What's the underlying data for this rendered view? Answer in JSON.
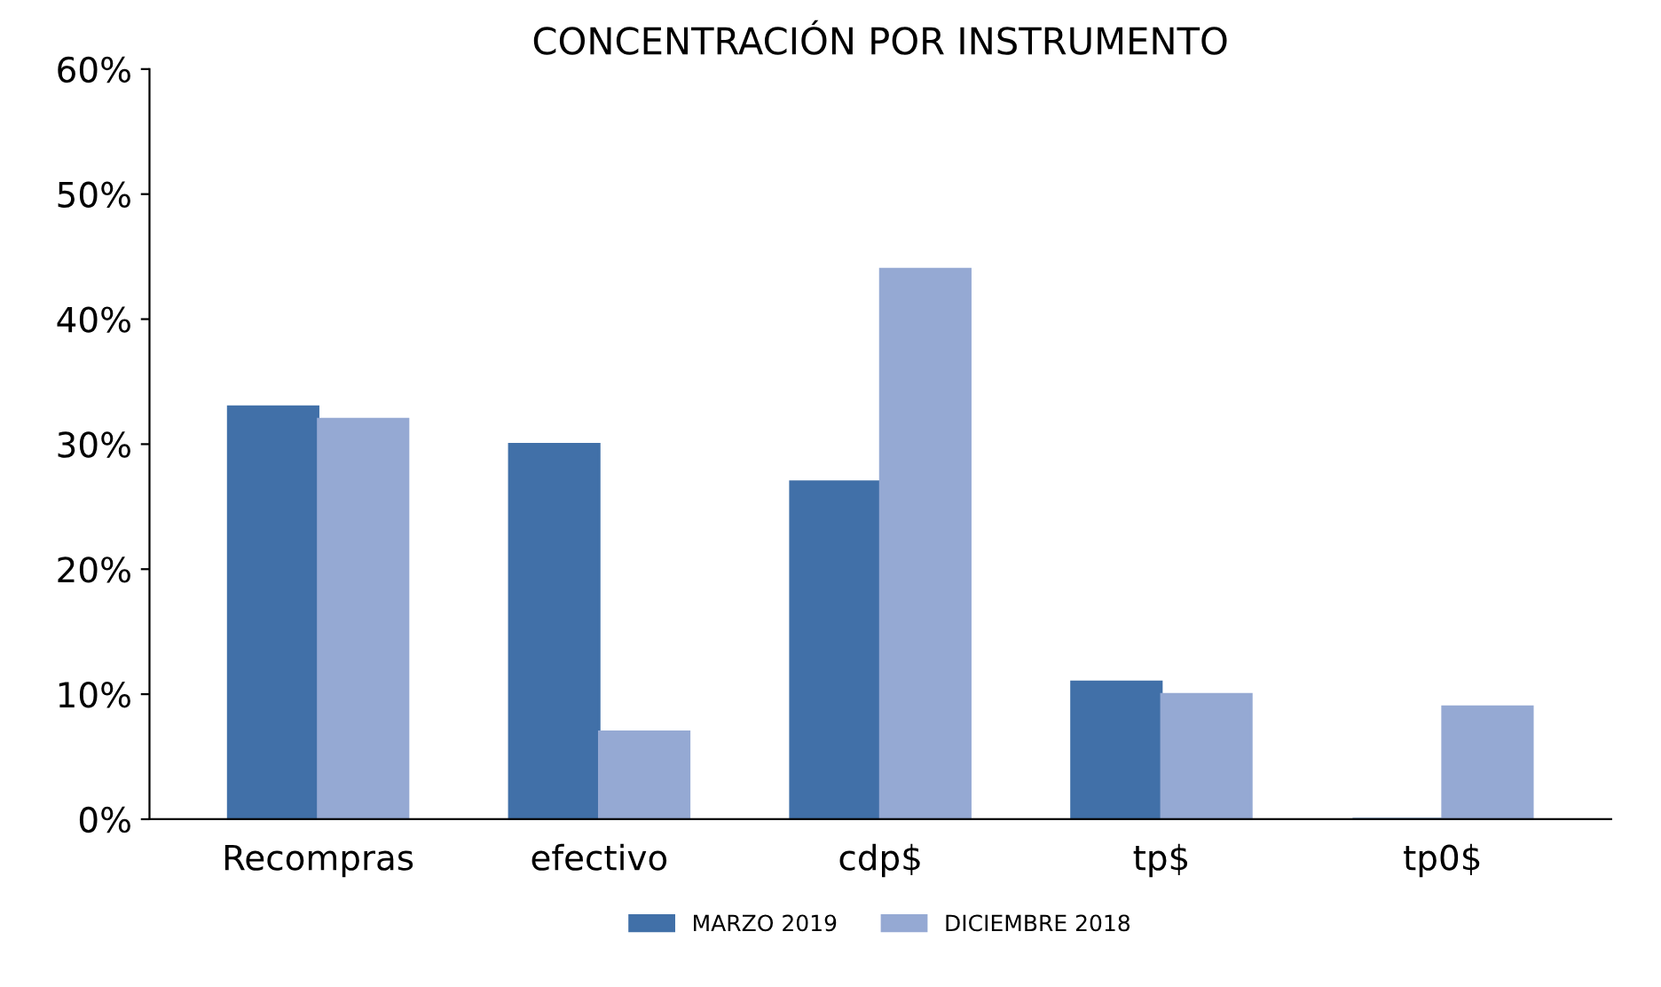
{
  "chart_data": {
    "type": "bar",
    "title": "CONCENTRACIÓN POR INSTRUMENTO",
    "categories": [
      "Recompras",
      "efectivo",
      "cdp$",
      "tp$",
      "tp0$"
    ],
    "series": [
      {
        "name": "MARZO 2019",
        "color": "#4170a8",
        "values": [
          33,
          30,
          27,
          11,
          0
        ]
      },
      {
        "name": "DICIEMBRE 2018",
        "color": "#95a9d3",
        "values": [
          32,
          7,
          44,
          10,
          9
        ]
      }
    ],
    "ylim": [
      0,
      60
    ],
    "yticks": [
      {
        "value": 0,
        "label": "0%"
      },
      {
        "value": 10,
        "label": "10%"
      },
      {
        "value": 20,
        "label": "20%"
      },
      {
        "value": 30,
        "label": "30%"
      },
      {
        "value": 40,
        "label": "40%"
      },
      {
        "value": 50,
        "label": "50%"
      },
      {
        "value": 60,
        "label": "60%"
      }
    ],
    "grid": false,
    "legend": "bottom"
  }
}
